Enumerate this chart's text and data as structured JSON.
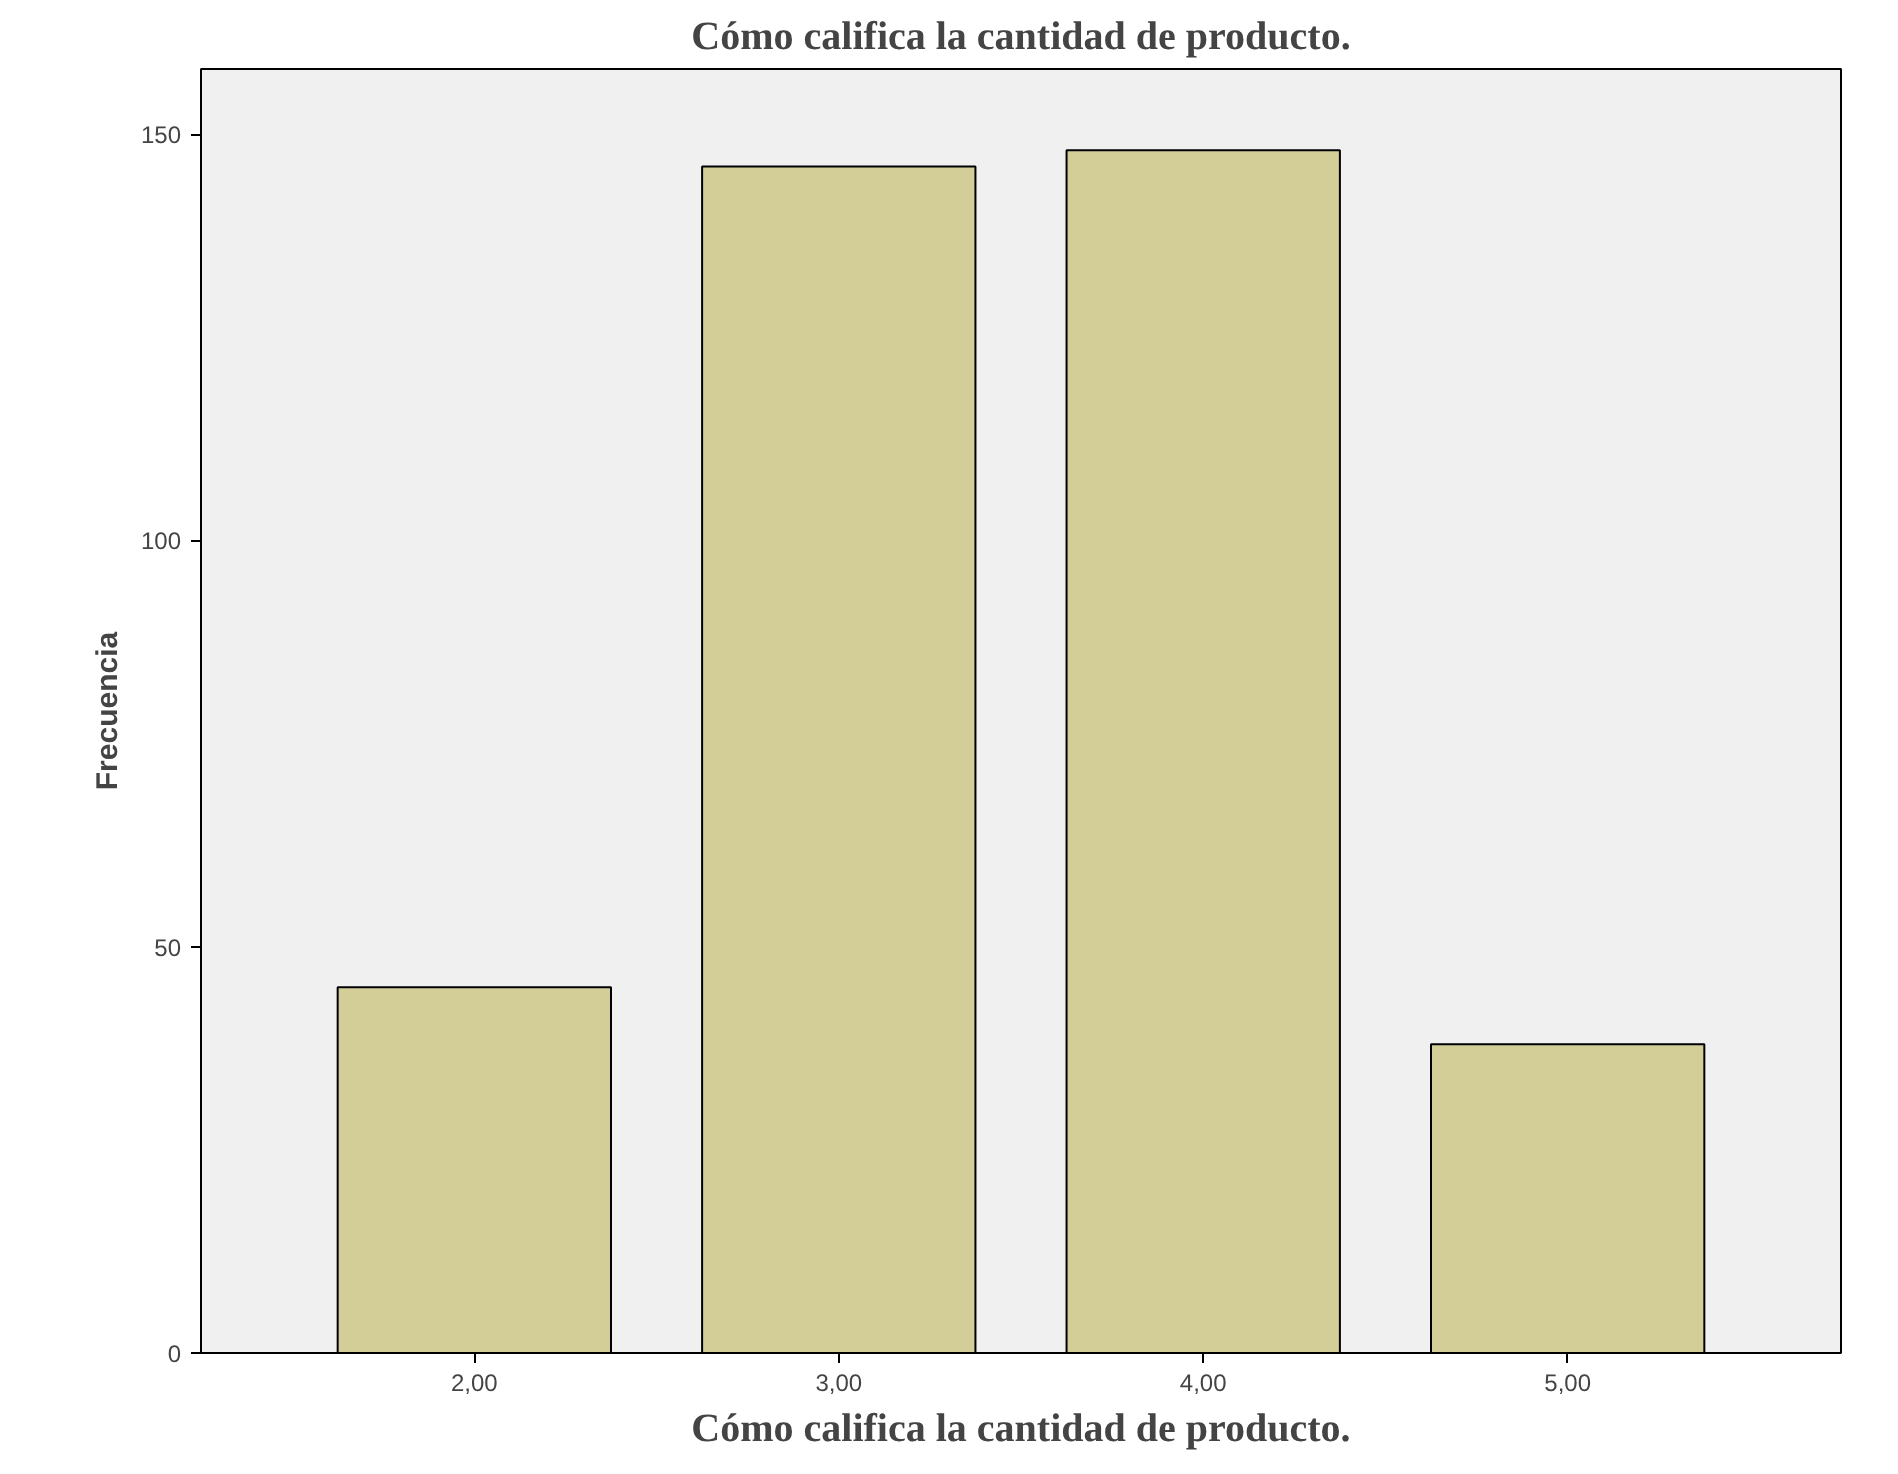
{
  "chart_data": {
    "type": "bar",
    "title": "Cómo califica la cantidad de producto.",
    "xlabel": "Cómo califica la cantidad de producto.",
    "ylabel": "Frecuencia",
    "categories": [
      "2,00",
      "3,00",
      "4,00",
      "5,00"
    ],
    "values": [
      45,
      146,
      148,
      38
    ],
    "color": "#d3ce97",
    "ylim": [
      0,
      158
    ],
    "yticks": [
      0,
      50,
      100,
      150
    ],
    "grid": false
  }
}
